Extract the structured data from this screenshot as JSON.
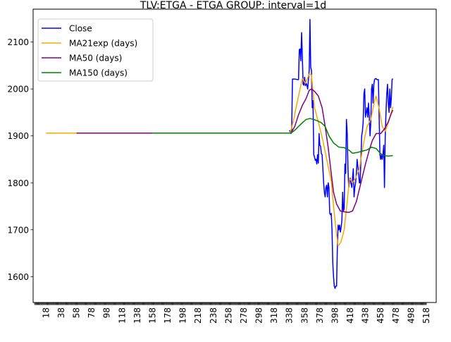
{
  "chart_data": {
    "type": "line",
    "title": "TLV:ETGA - ETGA GROUP: interval=1d",
    "xlabel": "",
    "ylabel": "",
    "xlim": [
      1,
      531
    ],
    "ylim": [
      1545,
      2170
    ],
    "grid": false,
    "legend_position": "top-left",
    "y_ticks": [
      1600,
      1700,
      1800,
      1900,
      2000,
      2100
    ],
    "x_ticks": [
      18,
      38,
      58,
      78,
      98,
      118,
      138,
      158,
      178,
      198,
      218,
      238,
      258,
      278,
      298,
      318,
      338,
      358,
      378,
      398,
      418,
      438,
      458,
      478,
      498,
      518
    ],
    "series": [
      {
        "name": "Close",
        "color": "#0000ff",
        "points": [
          [
            338,
            1912
          ],
          [
            339,
            1909
          ],
          [
            340,
            1905
          ],
          [
            341,
            1912
          ],
          [
            342,
            2021
          ],
          [
            344,
            2021
          ],
          [
            346,
            2021
          ],
          [
            348,
            2020
          ],
          [
            350,
            2020
          ],
          [
            351,
            2084
          ],
          [
            352,
            2085
          ],
          [
            353,
            2060
          ],
          [
            354,
            2120
          ],
          [
            355,
            2070
          ],
          [
            356,
            2010
          ],
          [
            357,
            2008
          ],
          [
            358,
            2025
          ],
          [
            359,
            2007
          ],
          [
            360,
            2012
          ],
          [
            361,
            2008
          ],
          [
            362,
            2000
          ],
          [
            363,
            2020
          ],
          [
            364,
            2040
          ],
          [
            365,
            2148
          ],
          [
            366,
            2046
          ],
          [
            367,
            2040
          ],
          [
            368,
            1960
          ],
          [
            369,
            1975
          ],
          [
            370,
            1860
          ],
          [
            371,
            1855
          ],
          [
            372,
            1848
          ],
          [
            373,
            1850
          ],
          [
            374,
            1840
          ],
          [
            375,
            1860
          ],
          [
            376,
            1842
          ],
          [
            377,
            1905
          ],
          [
            378,
            1880
          ],
          [
            379,
            1878
          ],
          [
            380,
            1862
          ],
          [
            381,
            1860
          ],
          [
            382,
            1830
          ],
          [
            383,
            1800
          ],
          [
            384,
            1780
          ],
          [
            385,
            1770
          ],
          [
            386,
            1790
          ],
          [
            387,
            1795
          ],
          [
            388,
            1770
          ],
          [
            389,
            1800
          ],
          [
            390,
            1790
          ],
          [
            391,
            1735
          ],
          [
            392,
            1732
          ],
          [
            393,
            1735
          ],
          [
            394,
            1700
          ],
          [
            395,
            1630
          ],
          [
            396,
            1600
          ],
          [
            397,
            1580
          ],
          [
            398,
            1575
          ],
          [
            399,
            1580
          ],
          [
            400,
            1580
          ],
          [
            401,
            1660
          ],
          [
            402,
            1710
          ],
          [
            403,
            1700
          ],
          [
            404,
            1710
          ],
          [
            405,
            1695
          ],
          [
            406,
            1705
          ],
          [
            407,
            1720
          ],
          [
            408,
            1780
          ],
          [
            409,
            1740
          ],
          [
            410,
            1745
          ],
          [
            411,
            1840
          ],
          [
            412,
            1820
          ],
          [
            413,
            1935
          ],
          [
            414,
            1905
          ],
          [
            415,
            1830
          ],
          [
            416,
            1790
          ],
          [
            417,
            1800
          ],
          [
            418,
            1810
          ],
          [
            419,
            1800
          ],
          [
            420,
            1790
          ],
          [
            421,
            1810
          ],
          [
            422,
            1830
          ],
          [
            423,
            1770
          ],
          [
            424,
            1790
          ],
          [
            425,
            1800
          ],
          [
            426,
            1820
          ],
          [
            427,
            1850
          ],
          [
            428,
            1835
          ],
          [
            429,
            1820
          ],
          [
            430,
            1800
          ],
          [
            431,
            1800
          ],
          [
            432,
            1850
          ],
          [
            433,
            1900
          ],
          [
            434,
            1910
          ],
          [
            435,
            1930
          ],
          [
            436,
            1990
          ],
          [
            437,
            2000
          ],
          [
            438,
            1940
          ],
          [
            439,
            1950
          ],
          [
            440,
            1960
          ],
          [
            441,
            1940
          ],
          [
            442,
            1970
          ],
          [
            443,
            1940
          ],
          [
            444,
            1900
          ],
          [
            445,
            1930
          ],
          [
            446,
            2000
          ],
          [
            447,
            2010
          ],
          [
            448,
            1970
          ],
          [
            449,
            2010
          ],
          [
            450,
            2020
          ],
          [
            451,
            2022
          ],
          [
            452,
            2022
          ],
          [
            453,
            2020
          ],
          [
            454,
            2020
          ],
          [
            455,
            2020
          ],
          [
            456,
            1940
          ],
          [
            457,
            1860
          ],
          [
            458,
            1850
          ],
          [
            459,
            1860
          ],
          [
            460,
            1850
          ],
          [
            461,
            1860
          ],
          [
            462,
            1880
          ],
          [
            463,
            1790
          ],
          [
            464,
            1900
          ],
          [
            465,
            1950
          ],
          [
            466,
            1990
          ],
          [
            467,
            2010
          ],
          [
            468,
            1970
          ],
          [
            469,
            1950
          ],
          [
            470,
            2000
          ],
          [
            471,
            1960
          ],
          [
            472,
            1980
          ],
          [
            473,
            2020
          ],
          [
            474,
            2022
          ]
        ]
      },
      {
        "name": "MA21exp (days)",
        "color": "#ffa500",
        "points": [
          [
            18,
            1906
          ],
          [
            58,
            1906
          ],
          [
            339,
            1906
          ],
          [
            343,
            1930
          ],
          [
            348,
            1970
          ],
          [
            352,
            2000
          ],
          [
            355,
            2022
          ],
          [
            359,
            2012
          ],
          [
            364,
            2032
          ],
          [
            367,
            2030
          ],
          [
            371,
            1960
          ],
          [
            376,
            1930
          ],
          [
            382,
            1890
          ],
          [
            387,
            1850
          ],
          [
            393,
            1805
          ],
          [
            396,
            1750
          ],
          [
            400,
            1690
          ],
          [
            402,
            1665
          ],
          [
            406,
            1675
          ],
          [
            410,
            1700
          ],
          [
            414,
            1760
          ],
          [
            417,
            1810
          ],
          [
            421,
            1800
          ],
          [
            425,
            1810
          ],
          [
            430,
            1830
          ],
          [
            435,
            1880
          ],
          [
            440,
            1920
          ],
          [
            445,
            1935
          ],
          [
            450,
            1975
          ],
          [
            452,
            1985
          ],
          [
            456,
            1958
          ],
          [
            460,
            1920
          ],
          [
            464,
            1910
          ],
          [
            468,
            1928
          ],
          [
            471,
            1945
          ],
          [
            474,
            1962
          ]
        ]
      },
      {
        "name": "MA50 (days)",
        "color": "#800080",
        "points": [
          [
            58,
            1906
          ],
          [
            158,
            1906
          ],
          [
            340,
            1906
          ],
          [
            345,
            1920
          ],
          [
            350,
            1945
          ],
          [
            355,
            1965
          ],
          [
            360,
            1980
          ],
          [
            364,
            1997
          ],
          [
            367,
            2000
          ],
          [
            371,
            1995
          ],
          [
            376,
            1985
          ],
          [
            381,
            1960
          ],
          [
            385,
            1920
          ],
          [
            389,
            1875
          ],
          [
            393,
            1820
          ],
          [
            396,
            1780
          ],
          [
            400,
            1755
          ],
          [
            405,
            1740
          ],
          [
            411,
            1738
          ],
          [
            416,
            1737
          ],
          [
            421,
            1740
          ],
          [
            426,
            1760
          ],
          [
            432,
            1800
          ],
          [
            438,
            1840
          ],
          [
            443,
            1870
          ],
          [
            447,
            1890
          ],
          [
            452,
            1905
          ],
          [
            458,
            1905
          ],
          [
            463,
            1915
          ],
          [
            468,
            1930
          ],
          [
            472,
            1948
          ],
          [
            474,
            1955
          ]
        ]
      },
      {
        "name": "MA150 (days)",
        "color": "#008000",
        "points": [
          [
            158,
            1906
          ],
          [
            340,
            1906
          ],
          [
            345,
            1912
          ],
          [
            350,
            1920
          ],
          [
            355,
            1928
          ],
          [
            360,
            1935
          ],
          [
            365,
            1937
          ],
          [
            370,
            1935
          ],
          [
            375,
            1932
          ],
          [
            380,
            1928
          ],
          [
            385,
            1920
          ],
          [
            390,
            1900
          ],
          [
            396,
            1885
          ],
          [
            403,
            1876
          ],
          [
            410,
            1875
          ],
          [
            416,
            1870
          ],
          [
            421,
            1863
          ],
          [
            428,
            1865
          ],
          [
            435,
            1868
          ],
          [
            440,
            1870
          ],
          [
            446,
            1876
          ],
          [
            452,
            1873
          ],
          [
            458,
            1862
          ],
          [
            463,
            1858
          ],
          [
            468,
            1857
          ],
          [
            474,
            1858
          ]
        ]
      }
    ]
  }
}
